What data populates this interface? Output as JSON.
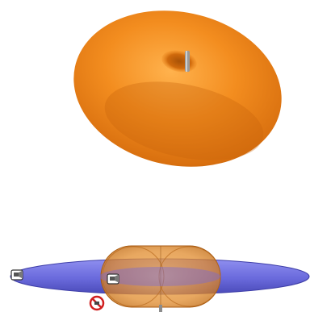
{
  "scene": {
    "upper_render": {
      "subject": "torus",
      "fill_color": "#f08a1e",
      "highlight_color": "#ffb24d",
      "shadow_color": "#b85a08",
      "axis_rod_color": "#9a9a9a"
    },
    "lower_render": {
      "ellipsoid_color": "#6f6fe0",
      "capsule_color": "#e79a3a",
      "icons": [
        "camera-icon",
        "camera-icon",
        "prohibited-icon"
      ]
    }
  }
}
